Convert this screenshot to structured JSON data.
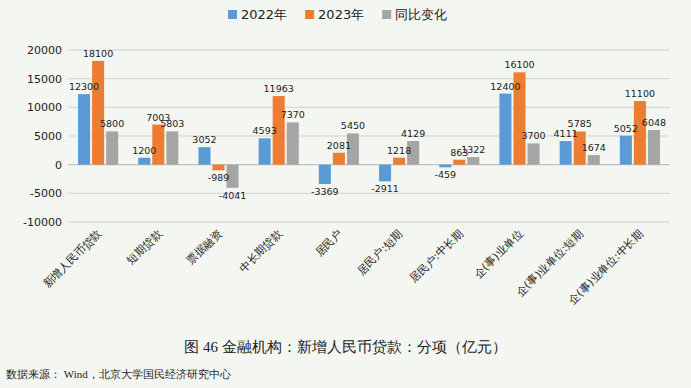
{
  "chart_data": {
    "type": "bar",
    "title": "图 46  金融机构：新增人民币贷款：分项（亿元）",
    "source": "数据来源：  Wind，北京大学国民经济研究中心",
    "categories": [
      "新增人民币贷款",
      "短期贷款",
      "票据融资",
      "中长期贷款",
      "居民户",
      "居民户:短期",
      "居民户:中长期",
      "企(事)业单位",
      "企(事)业单位:短期",
      "企(事)业单位:中长期"
    ],
    "series": [
      {
        "name": "2022年",
        "color": "#5b9bd5",
        "values": [
          12300,
          1200,
          3052,
          4593,
          -3369,
          -2911,
          -459,
          12400,
          4111,
          5052
        ]
      },
      {
        "name": "2023年",
        "color": "#ed7d31",
        "values": [
          18100,
          7003,
          -989,
          11963,
          2081,
          1218,
          863,
          16100,
          5785,
          11100
        ]
      },
      {
        "name": "同比变化",
        "color": "#a5a5a5",
        "values": [
          5800,
          5803,
          -4041,
          7370,
          5450,
          4129,
          1322,
          3700,
          1674,
          6048
        ]
      }
    ],
    "ylim": [
      -10000,
      20000
    ],
    "yticks": [
      -10000,
      -5000,
      0,
      5000,
      10000,
      15000,
      20000
    ],
    "grid": true,
    "legend": "top",
    "data_labels": true
  }
}
